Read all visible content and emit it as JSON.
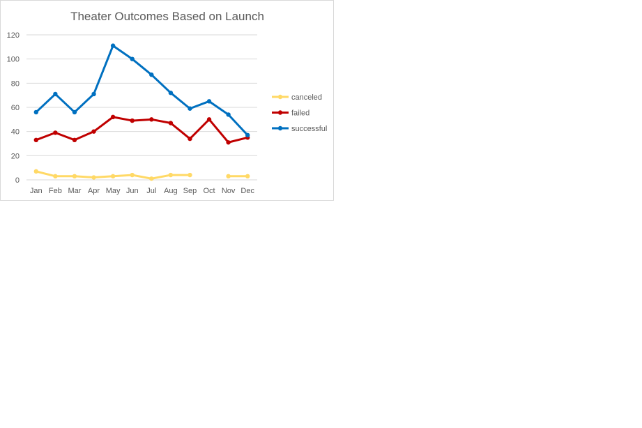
{
  "chart_data": {
    "type": "line",
    "title": "Theater Outcomes Based on Launch",
    "xlabel": "",
    "ylabel": "",
    "categories": [
      "Jan",
      "Feb",
      "Mar",
      "Apr",
      "May",
      "Jun",
      "Jul",
      "Aug",
      "Sep",
      "Oct",
      "Nov",
      "Dec"
    ],
    "ylim": [
      0,
      120
    ],
    "yticks": [
      0,
      20,
      40,
      60,
      80,
      100,
      120
    ],
    "grid": true,
    "legend_position": "right",
    "series": [
      {
        "name": "canceled",
        "color": "#ffd966",
        "values": [
          7,
          3,
          3,
          2,
          3,
          4,
          1,
          4,
          4,
          null,
          3,
          3
        ]
      },
      {
        "name": "failed",
        "color": "#c00000",
        "values": [
          33,
          39,
          33,
          40,
          52,
          49,
          50,
          47,
          34,
          50,
          31,
          35
        ]
      },
      {
        "name": "successful",
        "color": "#0070c0",
        "values": [
          56,
          71,
          56,
          71,
          111,
          100,
          87,
          72,
          59,
          65,
          54,
          37
        ]
      }
    ]
  }
}
